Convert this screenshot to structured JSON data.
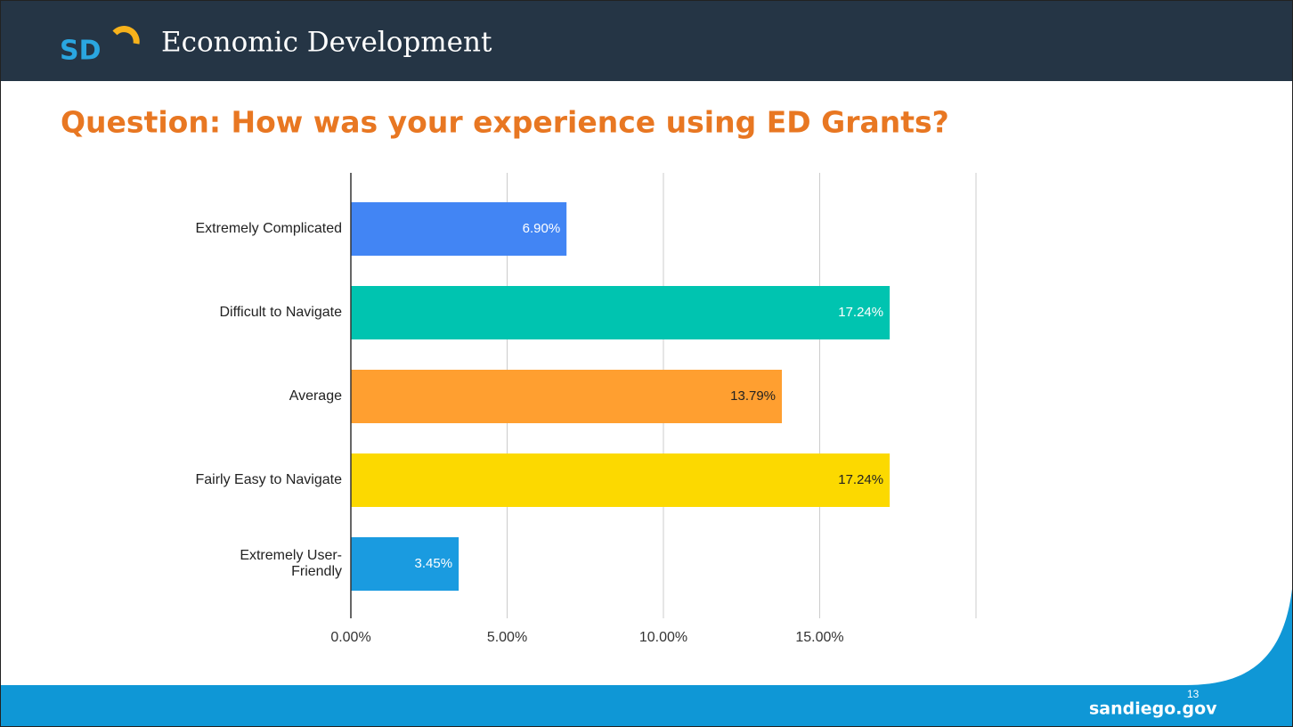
{
  "header": {
    "logo": "SD",
    "title": "Economic Development"
  },
  "slide_title": "Question: How was your experience using ED Grants?",
  "chart_data": {
    "type": "bar",
    "orientation": "horizontal",
    "categories": [
      "Extremely Complicated",
      "Difficult to Navigate",
      "Average",
      "Fairly Easy to Navigate",
      "Extremely User-Friendly"
    ],
    "values": [
      6.9,
      17.24,
      13.79,
      17.24,
      3.45
    ],
    "value_labels": [
      "6.90%",
      "17.24%",
      "13.79%",
      "17.24%",
      "3.45%"
    ],
    "colors": [
      "#4285f4",
      "#00c4b0",
      "#ff9f30",
      "#fcd900",
      "#1a9be0"
    ],
    "xlim": [
      0,
      20
    ],
    "xticks": [
      {
        "value": 0,
        "label": "0.00%"
      },
      {
        "value": 5,
        "label": "5.00%"
      },
      {
        "value": 10,
        "label": "10.00%"
      },
      {
        "value": 15,
        "label": "15.00%"
      }
    ],
    "grid": true
  },
  "footer": {
    "site": "sandiego.gov",
    "page": "13"
  }
}
